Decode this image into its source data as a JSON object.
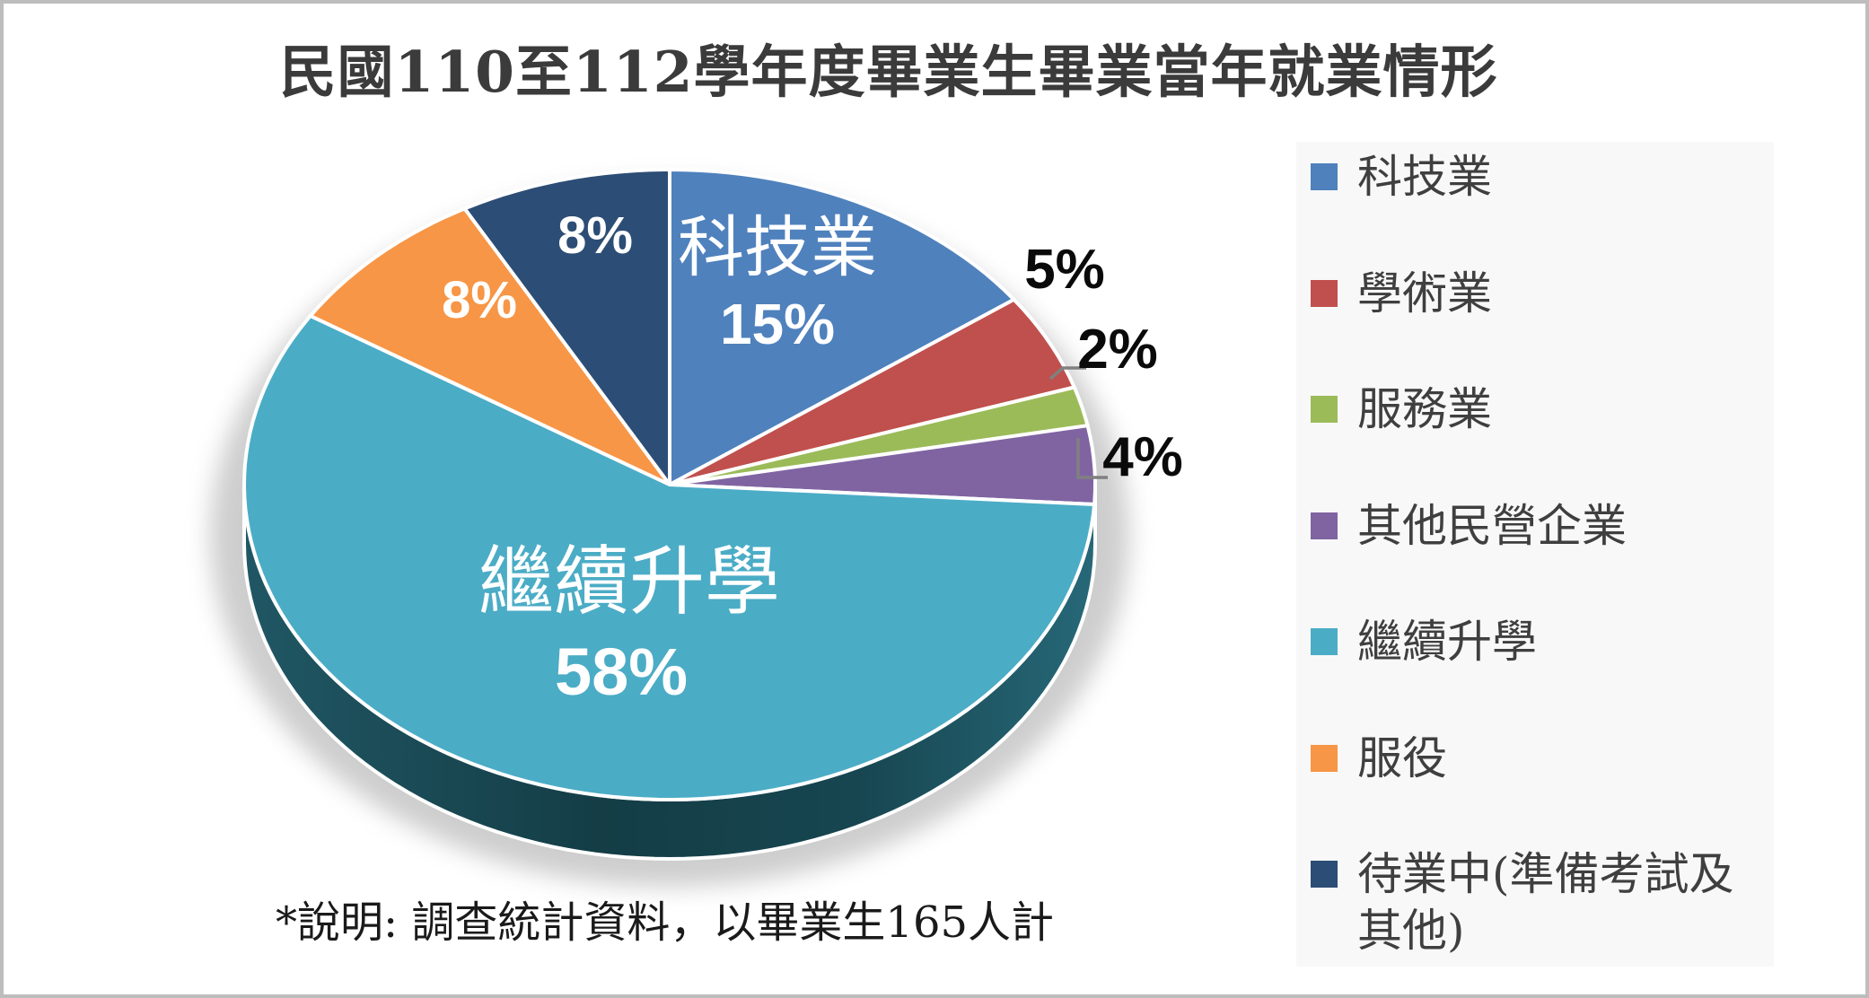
{
  "title": "民國110至112學年度畢業生畢業當年就業情形",
  "footnote": "*說明: 調查統計資料，以畢業生165人計",
  "chart_data": {
    "type": "pie",
    "style": "3d-pie",
    "title": "民國110至112學年度畢業生畢業當年就業情形",
    "unit": "percent",
    "start_angle_deg": 0,
    "direction": "clockwise",
    "legend_position": "right",
    "slices": [
      {
        "label": "科技業",
        "value": 15,
        "pct_label": "15%",
        "color": "#4F81BD",
        "label_placement": "inside-with-name"
      },
      {
        "label": "學術業",
        "value": 5,
        "pct_label": "5%",
        "color": "#C0504D",
        "label_placement": "outside"
      },
      {
        "label": "服務業",
        "value": 2,
        "pct_label": "2%",
        "color": "#9BBB59",
        "label_placement": "outside-leader"
      },
      {
        "label": "其他民營企業",
        "value": 4,
        "pct_label": "4%",
        "color": "#8064A2",
        "label_placement": "outside-leader"
      },
      {
        "label": "繼續升學",
        "value": 58,
        "pct_label": "58%",
        "color": "#4BACC6",
        "label_placement": "inside-with-name"
      },
      {
        "label": "服役",
        "value": 8,
        "pct_label": "8%",
        "color": "#F79646",
        "label_placement": "inside"
      },
      {
        "label": "待業中(準備考試及其他)",
        "value": 8,
        "pct_label": "8%",
        "color": "#2C4D75",
        "label_placement": "inside"
      }
    ]
  },
  "legend": {
    "items": [
      {
        "label": "科技業",
        "color": "#4F81BD"
      },
      {
        "label": "學術業",
        "color": "#C0504D"
      },
      {
        "label": "服務業",
        "color": "#9BBB59"
      },
      {
        "label": "其他民營企業",
        "color": "#8064A2"
      },
      {
        "label": "繼續升學",
        "color": "#4BACC6"
      },
      {
        "label": "服役",
        "color": "#F79646"
      },
      {
        "label": "待業中(準備考試及其他)",
        "color": "#2C4D75"
      }
    ]
  },
  "colors": {
    "wall_dark_teal": "#17434D",
    "shadow_gray": "#A6A6A6",
    "leader_line_gray": "#808080",
    "legend_bg": "#F8F8F8",
    "frame_border": "#BDBDBD"
  }
}
